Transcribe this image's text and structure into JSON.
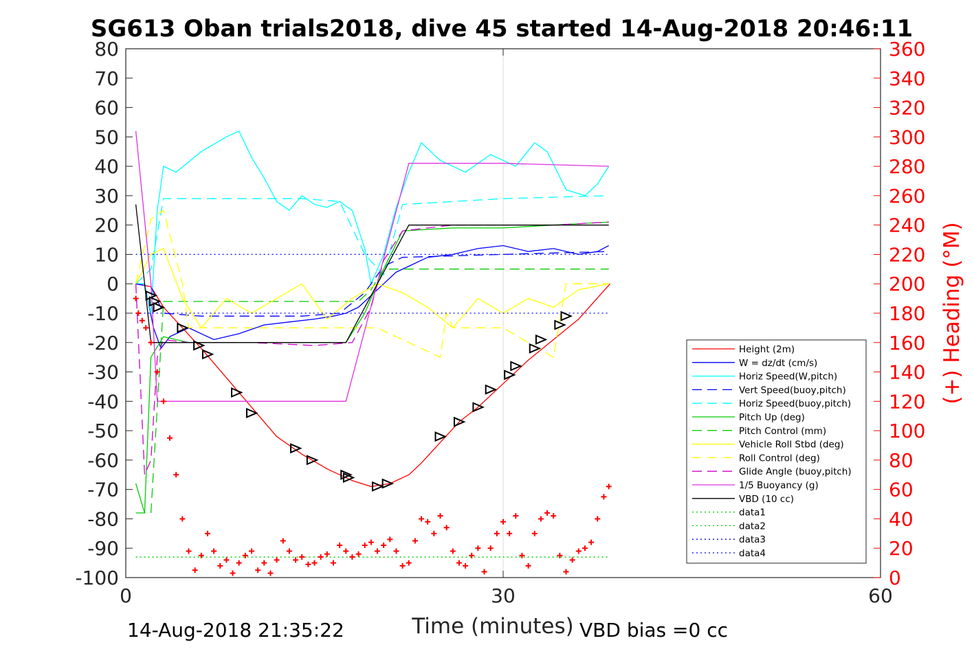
{
  "title": "SG613 Oban trials2018, dive 45 started 14-Aug-2018 20:46:11",
  "footer": {
    "left": "14-Aug-2018 21:35:22",
    "right": "VBD bias =0 cc"
  },
  "chart_data": {
    "type": "line",
    "title": "SG613 Oban trials2018, dive 45 started 14-Aug-2018 20:46:11",
    "xlabel": "Time (minutes)",
    "ylabel": "",
    "y2label": "(+) Heading (°M)",
    "xlim": [
      0,
      60
    ],
    "ylim": [
      -100,
      80
    ],
    "y2lim": [
      0,
      360
    ],
    "xticks": [
      "0",
      "30",
      "60"
    ],
    "yticks": [
      "80",
      "70",
      "60",
      "50",
      "40",
      "30",
      "20",
      "10",
      "0",
      "-10",
      "-20",
      "-30",
      "-40",
      "-50",
      "-60",
      "-70",
      "-80",
      "-90",
      "-100"
    ],
    "y2ticks": [
      "360",
      "340",
      "320",
      "300",
      "280",
      "260",
      "240",
      "220",
      "200",
      "180",
      "160",
      "140",
      "120",
      "100",
      "80",
      "60",
      "40",
      "20",
      "0"
    ],
    "grid": "x-only",
    "legend_position": "right",
    "colors": {
      "height": "#ff0000",
      "w": "#0000ff",
      "horiz": "#00ffff",
      "pitch": "#00cc00",
      "roll": "#ffff00",
      "glide": "#cc00cc",
      "buoyancy": "#e030e0",
      "vbd": "#000000",
      "heading": "#ff0000"
    },
    "legend": [
      {
        "name": "Height (2m)",
        "color": "#ff0000",
        "dash": ""
      },
      {
        "name": "W = dz/dt (cm/s)",
        "color": "#0000ff",
        "dash": ""
      },
      {
        "name": "Horiz Speed(W,pitch)",
        "color": "#00ffff",
        "dash": ""
      },
      {
        "name": "Vert Speed(buoy,pitch)",
        "color": "#0000ff",
        "dash": "14,8"
      },
      {
        "name": "Horiz Speed(buoy,pitch)",
        "color": "#00ffff",
        "dash": "14,8"
      },
      {
        "name": "Pitch Up (deg)",
        "color": "#00cc00",
        "dash": ""
      },
      {
        "name": "Pitch Control (mm)",
        "color": "#00cc00",
        "dash": "14,8"
      },
      {
        "name": "Vehicle Roll Stbd (deg)",
        "color": "#ffff00",
        "dash": ""
      },
      {
        "name": "Roll Control (deg)",
        "color": "#ffff00",
        "dash": "14,8"
      },
      {
        "name": "Glide Angle (buoy,pitch)",
        "color": "#cc00cc",
        "dash": "14,8"
      },
      {
        "name": "1/5 Buoyancy (g)",
        "color": "#e030e0",
        "dash": ""
      },
      {
        "name": "VBD (10 cc)",
        "color": "#000000",
        "dash": ""
      },
      {
        "name": "data1",
        "color": "#00cc00",
        "dash": "2,4"
      },
      {
        "name": "data2",
        "color": "#00cc00",
        "dash": "2,4"
      },
      {
        "name": "data3",
        "color": "#0000ff",
        "dash": "2,4"
      },
      {
        "name": "data4",
        "color": "#0000ff",
        "dash": "2,4"
      }
    ],
    "series": [
      {
        "name": "Height (2m)",
        "x": [
          0.8,
          2.0,
          3.0,
          4.5,
          6.0,
          8.0,
          10.0,
          12.0,
          14.0,
          16.0,
          18.0,
          19.5,
          21.0,
          22.5,
          23.5,
          25.0,
          26.5,
          28.0,
          30.0,
          32.0,
          34.0,
          36.0,
          38.5
        ],
        "y": [
          0,
          -1,
          -8,
          -15,
          -22,
          -32,
          -42,
          -52,
          -58,
          -63,
          -67,
          -69,
          -68,
          -65,
          -61,
          -54,
          -47,
          -42,
          -34,
          -26,
          -19,
          -12,
          0
        ]
      },
      {
        "name": "W = dz/dt (cm/s)",
        "x": [
          0.8,
          1.5,
          2.2,
          2.8,
          3.5,
          5.0,
          7.0,
          9.0,
          11.0,
          13.0,
          15.0,
          16.5,
          17.5,
          18.5,
          19.5,
          20.5,
          21.5,
          22.5,
          24.0,
          26.0,
          28.0,
          30.0,
          32.0,
          34.0,
          36.0,
          37.5,
          38.4
        ],
        "y": [
          0,
          0,
          -15,
          -22,
          -18,
          -15,
          -19,
          -17,
          -14,
          -13,
          -12,
          -11,
          -10,
          -8,
          -4,
          0,
          4,
          6,
          9,
          10,
          12,
          13,
          11,
          12,
          10,
          11,
          13
        ]
      },
      {
        "name": "Horiz Speed(W,pitch)",
        "x": [
          0.8,
          1.5,
          2.0,
          2.5,
          3.0,
          4.0,
          6.0,
          8.0,
          9.0,
          10.0,
          11.0,
          12.0,
          13.0,
          14.0,
          15.0,
          16.0,
          17.0,
          18.0,
          19.0,
          19.5,
          20.5,
          21.5,
          22.5,
          23.5,
          25.0,
          27.0,
          29.0,
          31.0,
          32.5,
          33.5,
          35.0,
          36.5,
          37.5,
          38.4
        ],
        "y": [
          0,
          0,
          -10,
          25,
          40,
          38,
          45,
          50,
          52,
          43,
          36,
          28,
          25,
          30,
          27,
          26,
          28,
          25,
          12,
          0,
          10,
          26,
          38,
          48,
          42,
          38,
          44,
          40,
          48,
          45,
          32,
          30,
          34,
          40
        ]
      },
      {
        "name": "Vert Speed(buoy,pitch)",
        "x": [
          0.8,
          2.0,
          3.0,
          6.0,
          10.0,
          14.0,
          17.0,
          19.0,
          20.5,
          22.0,
          30.0,
          38.4
        ],
        "y": [
          0,
          -1,
          -10,
          -11,
          -11,
          -11,
          -10,
          -3,
          6,
          9,
          10,
          11
        ]
      },
      {
        "name": "Horiz Speed(buoy,pitch)",
        "x": [
          0.8,
          2.0,
          3.0,
          6.0,
          10.0,
          14.0,
          17.0,
          19.0,
          20.5,
          22.0,
          30.0,
          38.4
        ],
        "y": [
          0,
          5,
          29,
          29,
          29,
          29,
          28,
          10,
          3,
          27,
          29,
          30
        ]
      },
      {
        "name": "Pitch Up (deg)",
        "x": [
          0.8,
          1.5,
          2.0,
          3.0,
          5.0,
          10.0,
          15.0,
          17.5,
          19.0,
          20.5,
          22.0,
          26.0,
          30.0,
          34.0,
          38.4
        ],
        "y": [
          -68,
          -78,
          -25,
          -18,
          -20,
          -20,
          -20,
          -20,
          -10,
          5,
          18,
          19,
          19,
          20,
          21
        ]
      },
      {
        "name": "Pitch Control (mm)",
        "x": [
          0.8,
          2.0,
          3.0,
          18.0,
          18.5,
          19.5,
          20.5,
          38.4
        ],
        "y": [
          -78,
          -78,
          -6,
          -6,
          -6,
          -2,
          5,
          5
        ]
      },
      {
        "name": "Vehicle Roll Stbd (deg)",
        "x": [
          0.8,
          2.0,
          3.0,
          4.5,
          6.0,
          8.0,
          10.0,
          12.0,
          14.0,
          16.0,
          18.0,
          20.0,
          22.0,
          24.0,
          26.0,
          28.0,
          30.0,
          32.0,
          34.0,
          36.0,
          38.4
        ],
        "y": [
          0,
          10,
          12,
          -5,
          -15,
          -5,
          -10,
          -5,
          0,
          -12,
          -5,
          0,
          -3,
          -8,
          -15,
          -5,
          -10,
          -5,
          -8,
          -2,
          0
        ]
      },
      {
        "name": "Roll Control (deg)",
        "x": [
          0.8,
          2.0,
          3.0,
          4.5,
          5.0,
          10.0,
          15.0,
          20.0,
          25.0,
          25.5,
          26.0,
          30.0,
          34.0,
          35.0,
          38.4
        ],
        "y": [
          0,
          22,
          25,
          0,
          -15,
          -15,
          -15,
          -15,
          -25,
          -10,
          -15,
          -15,
          -25,
          0,
          0
        ]
      },
      {
        "name": "Glide Angle (buoy,pitch)",
        "x": [
          0.8,
          1.5,
          2.0,
          2.5,
          3.0,
          5.0,
          10.0,
          15.0,
          18.0,
          19.5,
          20.5,
          22.0,
          26.0,
          30.0,
          34.0,
          38.4
        ],
        "y": [
          0,
          -65,
          -60,
          -25,
          -19,
          -20,
          -20,
          -21,
          -20,
          -8,
          8,
          18,
          20,
          20,
          20,
          21
        ]
      },
      {
        "name": "1/5 Buoyancy (g)",
        "x": [
          0.8,
          2.0,
          2.5,
          10.0,
          17.5,
          22.5,
          30.0,
          38.4
        ],
        "y": [
          52,
          0,
          -40,
          -40,
          -40,
          41,
          41,
          40
        ]
      },
      {
        "name": "VBD (10 cc)",
        "x": [
          0.8,
          1.5,
          2.0,
          2.5,
          10.0,
          17.5,
          22.5,
          30.0,
          38.4
        ],
        "y": [
          27,
          0,
          -20,
          -20,
          -20,
          -20,
          20,
          20,
          20
        ]
      },
      {
        "name": "data1",
        "x": [
          0.8,
          38.4
        ],
        "y": [
          -93,
          -93
        ]
      },
      {
        "name": "data2",
        "x": [
          0.8,
          38.4
        ],
        "y": [
          -93,
          -93
        ]
      },
      {
        "name": "data3",
        "x": [
          0.8,
          38.4
        ],
        "y": [
          10,
          10
        ]
      },
      {
        "name": "data4",
        "x": [
          0.8,
          38.4
        ],
        "y": [
          -10,
          -10
        ]
      }
    ],
    "markers": {
      "triangles_x": [
        2.0,
        2.3,
        2.6,
        4.5,
        5.8,
        6.5,
        8.8,
        10.0,
        13.5,
        14.8,
        17.5,
        17.7,
        20.0,
        20.8,
        25.0,
        26.5,
        28.0,
        29.0,
        30.5,
        31.0,
        32.5,
        33.0,
        34.5,
        35.0
      ],
      "triangles_y": [
        -4,
        -6,
        -8,
        -15,
        -21,
        -24,
        -37,
        -44,
        -56,
        -60,
        -65,
        -66,
        -69,
        -68,
        -52,
        -47,
        -42,
        -36,
        -31,
        -28,
        -22,
        -19,
        -14,
        -11
      ],
      "heading_x": [
        0.8,
        1.0,
        1.3,
        1.6,
        2.0,
        2.5,
        3.0,
        3.5,
        4.0,
        4.5,
        5.0,
        5.5,
        6.0,
        6.5,
        7.0,
        7.5,
        8.0,
        8.5,
        9.0,
        9.5,
        10.0,
        10.5,
        11.0,
        11.5,
        12.0,
        12.5,
        13.0,
        13.5,
        14.0,
        14.5,
        15.0,
        15.5,
        16.0,
        16.5,
        17.0,
        17.5,
        18.0,
        18.5,
        19.0,
        19.5,
        20.0,
        20.5,
        21.0,
        21.5,
        22.0,
        22.5,
        23.0,
        23.5,
        24.0,
        24.5,
        25.0,
        25.5,
        26.0,
        26.5,
        27.0,
        27.5,
        28.0,
        28.5,
        29.0,
        29.5,
        30.0,
        30.5,
        31.0,
        31.5,
        32.0,
        32.5,
        33.0,
        33.5,
        34.0,
        34.5,
        35.0,
        35.5,
        36.0,
        36.5,
        37.0,
        37.5,
        38.0,
        38.4
      ],
      "heading_y": [
        190,
        180,
        175,
        170,
        160,
        140,
        120,
        95,
        70,
        40,
        18,
        5,
        15,
        30,
        18,
        8,
        12,
        3,
        10,
        15,
        18,
        5,
        10,
        3,
        12,
        25,
        18,
        12,
        14,
        9,
        10,
        14,
        16,
        10,
        22,
        18,
        14,
        16,
        22,
        24,
        18,
        22,
        26,
        18,
        8,
        10,
        25,
        40,
        38,
        30,
        42,
        34,
        18,
        10,
        8,
        15,
        20,
        4,
        20,
        30,
        38,
        30,
        42,
        15,
        8,
        30,
        40,
        44,
        42,
        15,
        4,
        12,
        18,
        20,
        24,
        40,
        55,
        62
      ]
    }
  }
}
